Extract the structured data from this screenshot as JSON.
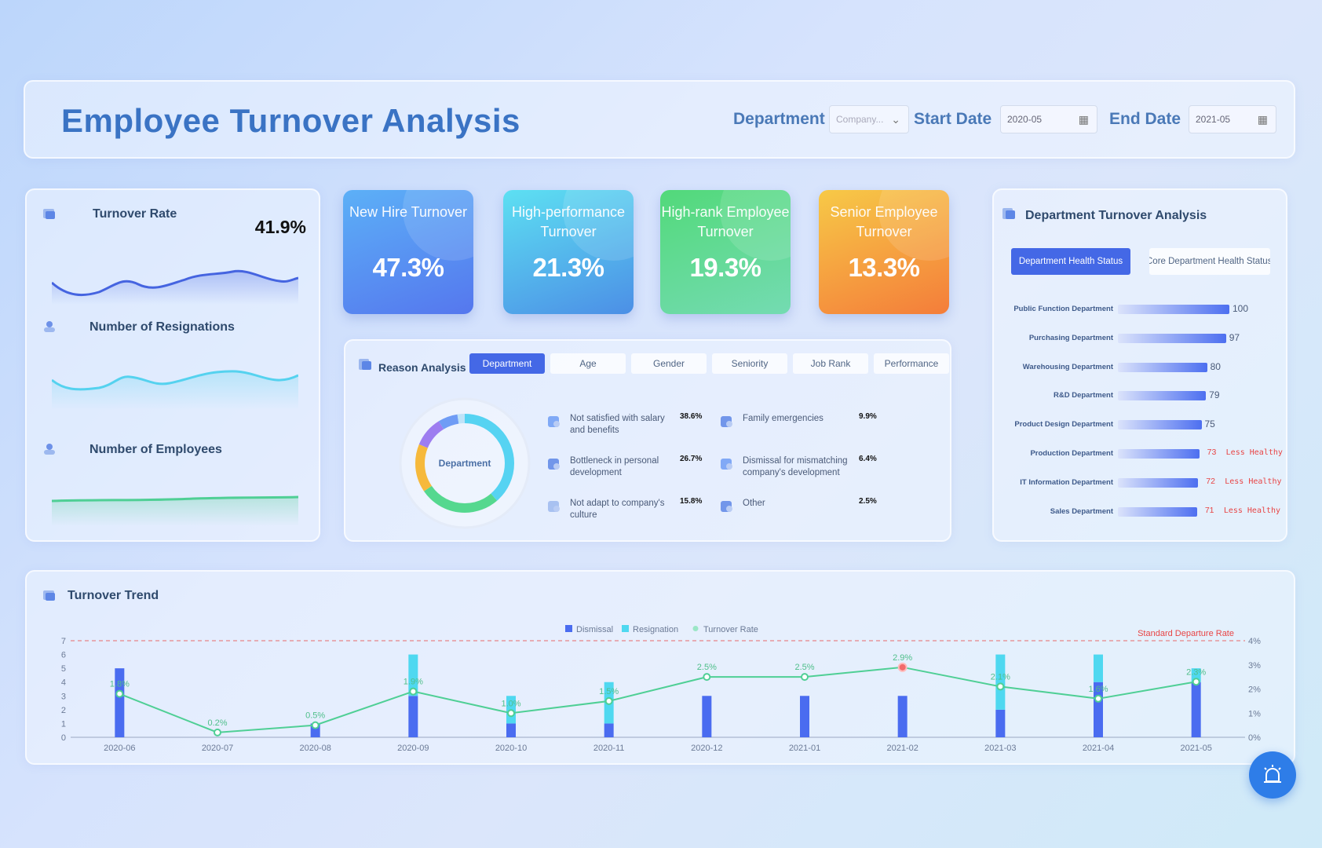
{
  "header": {
    "title": "Employee Turnover Analysis",
    "department_label": "Department",
    "department_value": "Company...",
    "start_label": "Start Date",
    "start_value": "2020-05",
    "end_label": "End Date",
    "end_value": "2021-05"
  },
  "left": {
    "turnover_rate_title": "Turnover Rate",
    "turnover_rate_value": "41.9%",
    "resignations_title": "Number of Resignations",
    "employees_title": "Number of Employees"
  },
  "kpis": [
    {
      "label": "New Hire Turnover",
      "value": "47.3%",
      "from": "#5cb0f7",
      "to": "#5577ee"
    },
    {
      "label": "High-performance Turnover",
      "value": "21.3%",
      "from": "#5de0f2",
      "to": "#4c8fe6"
    },
    {
      "label": "High-rank Employee Turnover",
      "value": "19.3%",
      "from": "#52d97a",
      "to": "#74dbb2"
    },
    {
      "label": "Senior Employee Turnover",
      "value": "13.3%",
      "from": "#f7c947",
      "to": "#f47d3a"
    }
  ],
  "reason": {
    "title": "Reason Analysis",
    "tabs": [
      "Department",
      "Age",
      "Gender",
      "Seniority",
      "Job Rank",
      "Performance"
    ],
    "donut_label": "Department",
    "items": [
      {
        "text": "Not satisfied with salary and benefits",
        "pct": "38.6%"
      },
      {
        "text": "Bottleneck in personal development",
        "pct": "26.7%"
      },
      {
        "text": "Not adapt to company's culture",
        "pct": "15.8%"
      },
      {
        "text": "Family emergencies",
        "pct": "9.9%"
      },
      {
        "text": "Dismissal for mismatching company's development",
        "pct": "6.4%"
      },
      {
        "text": "Other",
        "pct": "2.5%"
      }
    ]
  },
  "dept": {
    "title": "Department Turnover Analysis",
    "tab_active": "Department Health Status",
    "tab_other": "Core Department Health Status",
    "warn_text": "Less Healthy",
    "rows": [
      {
        "name": "Public Function Department",
        "value": 100,
        "warn": false
      },
      {
        "name": "Purchasing Department",
        "value": 97,
        "warn": false
      },
      {
        "name": "Warehousing Department",
        "value": 80,
        "warn": false
      },
      {
        "name": "R&D Department",
        "value": 79,
        "warn": false
      },
      {
        "name": "Product Design Department",
        "value": 75,
        "warn": false
      },
      {
        "name": "Production Department",
        "value": 73,
        "warn": true
      },
      {
        "name": "IT Information Department",
        "value": 72,
        "warn": true
      },
      {
        "name": "Sales Department",
        "value": 71,
        "warn": true
      }
    ]
  },
  "trend": {
    "title": "Turnover Trend",
    "standard_label": "Standard Departure Rate"
  },
  "colors": {
    "accent": "#4468e6",
    "cyan": "#4fd8f0",
    "green": "#4fcf95",
    "warn": "#e84545"
  },
  "chart_data": {
    "type": "bar",
    "categories": [
      "2020-06",
      "2020-07",
      "2020-08",
      "2020-09",
      "2020-10",
      "2020-11",
      "2020-12",
      "2021-01",
      "2021-02",
      "2021-03",
      "2021-04",
      "2021-05"
    ],
    "series": [
      {
        "name": "Dismissal",
        "values": [
          5,
          0,
          1,
          3,
          1,
          1,
          3,
          3,
          3,
          2,
          4,
          4
        ]
      },
      {
        "name": "Resignation",
        "values": [
          0,
          0,
          0,
          3,
          2,
          3,
          0,
          0,
          0,
          4,
          2,
          1
        ]
      },
      {
        "name": "Turnover Rate",
        "values": [
          1.8,
          0.2,
          0.5,
          1.9,
          1.0,
          1.5,
          2.5,
          2.5,
          2.9,
          2.1,
          1.6,
          2.3
        ]
      }
    ],
    "point_labels": [
      "1.8%",
      "0.2%",
      "0.5%",
      "1.9%",
      "1.0%",
      "1.5%",
      "2.5%",
      "2.5%",
      "2.9%",
      "2.1%",
      "1.6%",
      "2.3%"
    ],
    "ylim_left": [
      0,
      7
    ],
    "ylim_right": [
      0,
      4
    ],
    "y_ticks_left": [
      "0",
      "1",
      "2",
      "3",
      "4",
      "5",
      "6",
      "7"
    ],
    "y_ticks_right": [
      "0%",
      "1%",
      "2%",
      "3%",
      "4%"
    ],
    "standard_rate": 4,
    "legend": [
      "Dismissal",
      "Resignation",
      "Turnover Rate"
    ],
    "legend_position": "top-center"
  }
}
